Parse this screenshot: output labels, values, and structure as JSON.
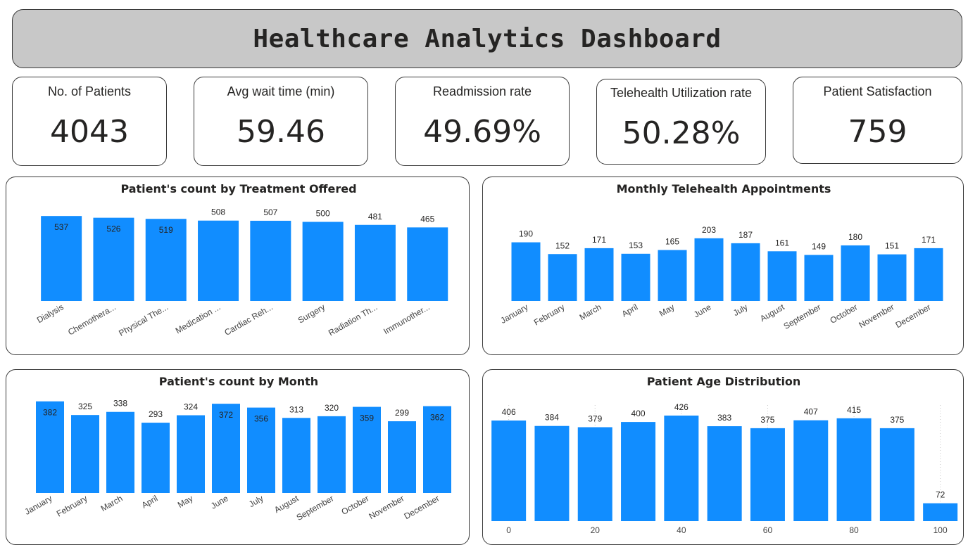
{
  "header": {
    "title": "Healthcare Analytics Dashboard"
  },
  "kpis": [
    {
      "label": "No. of Patients",
      "value": "4043"
    },
    {
      "label": "Avg wait time (min)",
      "value": "59.46"
    },
    {
      "label": "Readmission rate",
      "value": "49.69%"
    },
    {
      "label": "Telehealth Utilization rate",
      "value": "50.28%"
    },
    {
      "label": "Patient Satisfaction",
      "value": "759"
    }
  ],
  "colors": {
    "bar": "#118dff",
    "axis_text": "#444444"
  },
  "chart_data": [
    {
      "id": "treatment",
      "type": "bar",
      "title": "Patient's count by Treatment Offered",
      "categories": [
        "Dialysis",
        "Chemothera...",
        "Physical The...",
        "Medication ...",
        "Cardiac Reh...",
        "Surgery",
        "Radiation Th...",
        "Immunother..."
      ],
      "values": [
        537,
        526,
        519,
        508,
        507,
        500,
        481,
        465
      ],
      "ylim": [
        0,
        560
      ],
      "grid": false,
      "legend": "none"
    },
    {
      "id": "telehealth",
      "type": "bar",
      "title": "Monthly Telehealth Appointments",
      "categories": [
        "January",
        "February",
        "March",
        "April",
        "May",
        "June",
        "July",
        "August",
        "September",
        "October",
        "November",
        "December"
      ],
      "values": [
        190,
        152,
        171,
        153,
        165,
        203,
        187,
        161,
        149,
        180,
        151,
        171
      ],
      "ylim": [
        0,
        230
      ],
      "grid": false,
      "legend": "none"
    },
    {
      "id": "month",
      "type": "bar",
      "title": "Patient's count by Month",
      "categories": [
        "January",
        "February",
        "March",
        "April",
        "May",
        "June",
        "July",
        "August",
        "September",
        "October",
        "November",
        "December"
      ],
      "values": [
        382,
        325,
        338,
        293,
        324,
        372,
        356,
        313,
        320,
        359,
        299,
        362
      ],
      "ylim": [
        0,
        390
      ],
      "grid": false,
      "legend": "none"
    },
    {
      "id": "age",
      "type": "bar",
      "title": "Patient Age Distribution",
      "x": [
        0,
        10,
        20,
        30,
        40,
        50,
        60,
        70,
        80,
        90,
        100
      ],
      "values": [
        406,
        384,
        379,
        400,
        426,
        383,
        375,
        407,
        415,
        375,
        72
      ],
      "x_ticks": [
        "0",
        "20",
        "40",
        "60",
        "80",
        "100"
      ],
      "ylim": [
        0,
        440
      ],
      "grid": true,
      "legend": "none"
    }
  ]
}
